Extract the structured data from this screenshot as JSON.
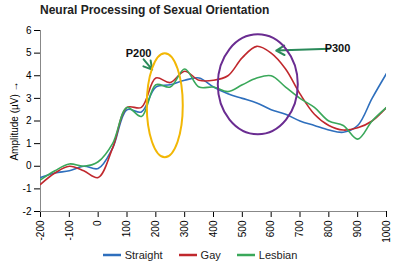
{
  "chart_data": {
    "type": "line",
    "title": "Neural Processing of Sexual Orientation",
    "y_label": "Amplitude (µV)",
    "x": [
      -200,
      -150,
      -100,
      -50,
      0,
      50,
      100,
      150,
      200,
      250,
      300,
      350,
      400,
      450,
      500,
      550,
      600,
      650,
      700,
      750,
      800,
      850,
      900,
      950,
      1000
    ],
    "series": [
      {
        "name": "Straight",
        "color": "#2e6fbd",
        "values": [
          -0.5,
          -0.3,
          -0.2,
          0,
          -0.1,
          0.8,
          2.5,
          2.4,
          3.5,
          3.6,
          3.8,
          3.9,
          3.5,
          3.2,
          3.0,
          2.8,
          2.5,
          2.3,
          2.0,
          1.8,
          1.6,
          1.5,
          1.8,
          3.0,
          4.1
        ]
      },
      {
        "name": "Gay",
        "color": "#c0282d",
        "values": [
          -0.8,
          -0.3,
          0,
          -0.2,
          -0.5,
          0.8,
          2.6,
          2.6,
          3.9,
          3.7,
          4.2,
          3.8,
          3.8,
          4.0,
          4.8,
          5.3,
          5.0,
          4.3,
          3.2,
          2.3,
          1.8,
          1.6,
          1.7,
          2.0,
          2.6
        ]
      },
      {
        "name": "Lesbian",
        "color": "#3aa85a",
        "values": [
          -0.6,
          -0.2,
          0.1,
          0,
          0.2,
          1.0,
          2.6,
          2.2,
          3.6,
          3.5,
          4.3,
          3.5,
          3.5,
          3.3,
          3.6,
          3.9,
          4.0,
          3.5,
          3.0,
          2.6,
          2.0,
          1.8,
          1.2,
          2.0,
          2.6
        ]
      }
    ],
    "xlim": [
      -200,
      1000
    ],
    "xticks": [
      -200,
      -100,
      0,
      100,
      200,
      300,
      400,
      500,
      600,
      700,
      800,
      900,
      1000
    ],
    "ylim": [
      -2,
      6
    ],
    "yticks": [
      -2,
      -1,
      0,
      1,
      2,
      3,
      4,
      5,
      6
    ],
    "grid": false,
    "legend": "bottom",
    "annotations": [
      {
        "text": "P200",
        "x": 140,
        "y": 5.0,
        "target_x": 205,
        "target_y": 4.0
      },
      {
        "text": "P300",
        "x": 830,
        "y": 5.2,
        "target_x": 590,
        "target_y": 5.1
      }
    ]
  }
}
